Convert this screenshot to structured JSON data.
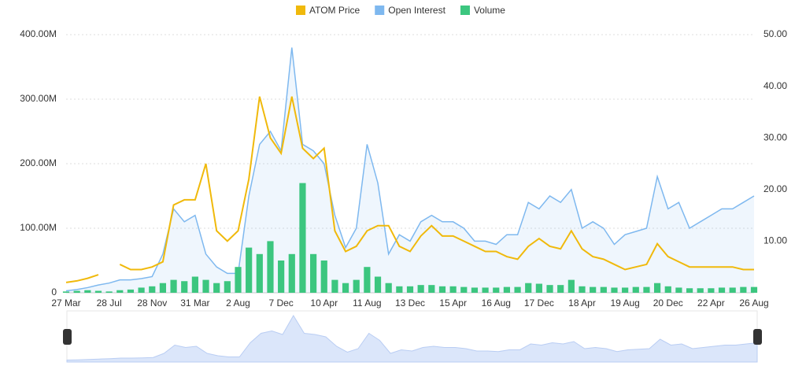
{
  "chart_data": {
    "type": "line",
    "legend": "top",
    "grid": true,
    "categories": [
      "27 Mar",
      null,
      null,
      null,
      "28 Jul",
      null,
      null,
      null,
      "28 Nov",
      null,
      null,
      null,
      "31 Mar",
      null,
      null,
      null,
      "2 Aug",
      null,
      null,
      null,
      "7 Dec",
      null,
      null,
      null,
      "10 Apr",
      null,
      null,
      null,
      "11 Aug",
      null,
      null,
      null,
      "13 Dec",
      null,
      null,
      null,
      "15 Apr",
      null,
      null,
      null,
      "16 Aug",
      null,
      null,
      null,
      "17 Dec",
      null,
      null,
      null,
      "18 Apr",
      null,
      null,
      null,
      "19 Aug",
      null,
      null,
      null,
      "20 Dec",
      null,
      null,
      null,
      "22 Apr",
      null,
      null,
      null,
      "26 Aug"
    ],
    "ylim": [
      0,
      400000000
    ],
    "yticks": [
      0,
      {
        "value": 100000000,
        "label": "100.00M"
      },
      {
        "value": 200000000,
        "label": "200.00M"
      },
      {
        "value": 300000000,
        "label": "300.00M"
      },
      {
        "value": 400000000,
        "label": "400.00M"
      }
    ],
    "y2lim": [
      0,
      50
    ],
    "y2ticks": [
      {
        "value": 10,
        "label": "10.00"
      },
      {
        "value": 20,
        "label": "20.00"
      },
      {
        "value": 30,
        "label": "30.00"
      },
      {
        "value": 40,
        "label": "40.00"
      },
      {
        "value": 50,
        "label": "50.00"
      }
    ],
    "series": [
      {
        "name": "ATOM Price",
        "type": "line",
        "axis": "y2",
        "color": "#f0b90b",
        "values": [
          2,
          2.3,
          2.8,
          3.5,
          null,
          5.5,
          4.5,
          4.5,
          5,
          6,
          17,
          18,
          18,
          25,
          12,
          10,
          12,
          22,
          38,
          30,
          27,
          38,
          28,
          26,
          28,
          12,
          8,
          9,
          12,
          13,
          13,
          9,
          8,
          11,
          13,
          11,
          11,
          10,
          9,
          8,
          8,
          7,
          6.5,
          9,
          10.5,
          9,
          8.5,
          12,
          8.5,
          7,
          6.5,
          5.5,
          4.5,
          5,
          5.5,
          9.5,
          7,
          6,
          5,
          5,
          5,
          5,
          5,
          4.5,
          4.5
        ]
      },
      {
        "name": "Open Interest",
        "type": "area",
        "color": "#7eb8ef",
        "values": [
          3000000,
          5000000,
          8000000,
          12000000,
          15000000,
          20000000,
          20000000,
          22000000,
          25000000,
          60000000,
          130000000,
          110000000,
          120000000,
          60000000,
          40000000,
          30000000,
          30000000,
          150000000,
          230000000,
          250000000,
          220000000,
          380000000,
          230000000,
          220000000,
          200000000,
          120000000,
          70000000,
          100000000,
          230000000,
          170000000,
          60000000,
          90000000,
          80000000,
          110000000,
          120000000,
          110000000,
          110000000,
          100000000,
          80000000,
          80000000,
          75000000,
          90000000,
          90000000,
          140000000,
          130000000,
          150000000,
          140000000,
          160000000,
          100000000,
          110000000,
          100000000,
          75000000,
          90000000,
          95000000,
          100000000,
          180000000,
          130000000,
          140000000,
          100000000,
          110000000,
          120000000,
          130000000,
          130000000,
          140000000,
          150000000
        ]
      },
      {
        "name": "Volume",
        "type": "bar",
        "color": "#3cc67f",
        "values": [
          2000000,
          3000000,
          4000000,
          3000000,
          2000000,
          4000000,
          5000000,
          8000000,
          10000000,
          15000000,
          20000000,
          18000000,
          25000000,
          20000000,
          15000000,
          18000000,
          40000000,
          70000000,
          60000000,
          80000000,
          50000000,
          60000000,
          170000000,
          60000000,
          50000000,
          20000000,
          15000000,
          20000000,
          40000000,
          25000000,
          15000000,
          10000000,
          10000000,
          12000000,
          12000000,
          10000000,
          10000000,
          9000000,
          8000000,
          8000000,
          8000000,
          9000000,
          9000000,
          15000000,
          14000000,
          12000000,
          12000000,
          20000000,
          10000000,
          9000000,
          9000000,
          8000000,
          8000000,
          9000000,
          9000000,
          15000000,
          10000000,
          8000000,
          7000000,
          7000000,
          7000000,
          8000000,
          8000000,
          9000000,
          9000000
        ]
      }
    ]
  }
}
